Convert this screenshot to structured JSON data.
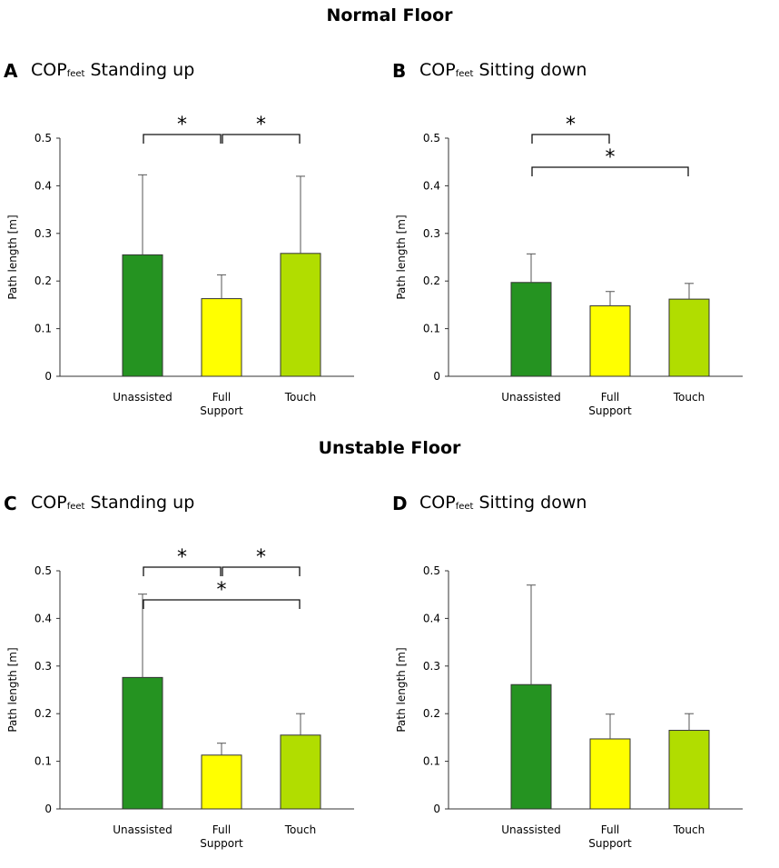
{
  "sections": {
    "top": "Normal Floor",
    "bottom": "Unstable Floor"
  },
  "colors": {
    "unassisted": "#259321",
    "full_support": "#ffff00",
    "touch": "#b1dd00",
    "axis": "#333333"
  },
  "chart_data": [
    {
      "id": "A",
      "type": "bar",
      "letter": "A",
      "title_main": "COP",
      "title_sub": "feet",
      "title_rest": " Standing up",
      "ylabel": "Path length [m]",
      "ylim": [
        0,
        0.5
      ],
      "yticks": [
        "0",
        "0.1",
        "0.2",
        "0.3",
        "0.4",
        "0.5"
      ],
      "categories": [
        [
          "Unassisted"
        ],
        [
          "Full",
          "Support"
        ],
        [
          "Touch"
        ]
      ],
      "values": [
        0.255,
        0.163,
        0.258
      ],
      "errors": [
        0.168,
        0.05,
        0.162
      ],
      "significance": [
        {
          "from": 0,
          "to": 1,
          "label": "*",
          "level": 1
        },
        {
          "from": 1,
          "to": 2,
          "label": "*",
          "level": 1
        }
      ]
    },
    {
      "id": "B",
      "type": "bar",
      "letter": "B",
      "title_main": "COP",
      "title_sub": "feet",
      "title_rest": " Sitting down",
      "ylabel": "Path length [m]",
      "ylim": [
        0,
        0.5
      ],
      "yticks": [
        "0",
        "0.1",
        "0.2",
        "0.3",
        "0.4",
        "0.5"
      ],
      "categories": [
        [
          "Unassisted"
        ],
        [
          "Full",
          "Support"
        ],
        [
          "Touch"
        ]
      ],
      "values": [
        0.197,
        0.148,
        0.162
      ],
      "errors": [
        0.06,
        0.03,
        0.033
      ],
      "significance": [
        {
          "from": 0,
          "to": 1,
          "label": "*",
          "level": 1
        },
        {
          "from": 0,
          "to": 2,
          "label": "*",
          "level": 2
        }
      ]
    },
    {
      "id": "C",
      "type": "bar",
      "letter": "C",
      "title_main": "COP",
      "title_sub": "feet",
      "title_rest": " Standing up",
      "ylabel": "Path length [m]",
      "ylim": [
        0,
        0.5
      ],
      "yticks": [
        "0",
        "0.1",
        "0.2",
        "0.3",
        "0.4",
        "0.5"
      ],
      "categories": [
        [
          "Unassisted"
        ],
        [
          "Full",
          "Support"
        ],
        [
          "Touch"
        ]
      ],
      "values": [
        0.276,
        0.113,
        0.155
      ],
      "errors": [
        0.175,
        0.025,
        0.045
      ],
      "significance": [
        {
          "from": 0,
          "to": 1,
          "label": "*",
          "level": 1
        },
        {
          "from": 1,
          "to": 2,
          "label": "*",
          "level": 1
        },
        {
          "from": 0,
          "to": 2,
          "label": "*",
          "level": 2
        }
      ]
    },
    {
      "id": "D",
      "type": "bar",
      "letter": "D",
      "title_main": "COP",
      "title_sub": "feet",
      "title_rest": " Sitting down",
      "ylabel": "Path length [m]",
      "ylim": [
        0,
        0.5
      ],
      "yticks": [
        "0",
        "0.1",
        "0.2",
        "0.3",
        "0.4",
        "0.5"
      ],
      "categories": [
        [
          "Unassisted"
        ],
        [
          "Full",
          "Support"
        ],
        [
          "Touch"
        ]
      ],
      "values": [
        0.261,
        0.147,
        0.165
      ],
      "errors": [
        0.209,
        0.052,
        0.035
      ],
      "significance": []
    }
  ]
}
